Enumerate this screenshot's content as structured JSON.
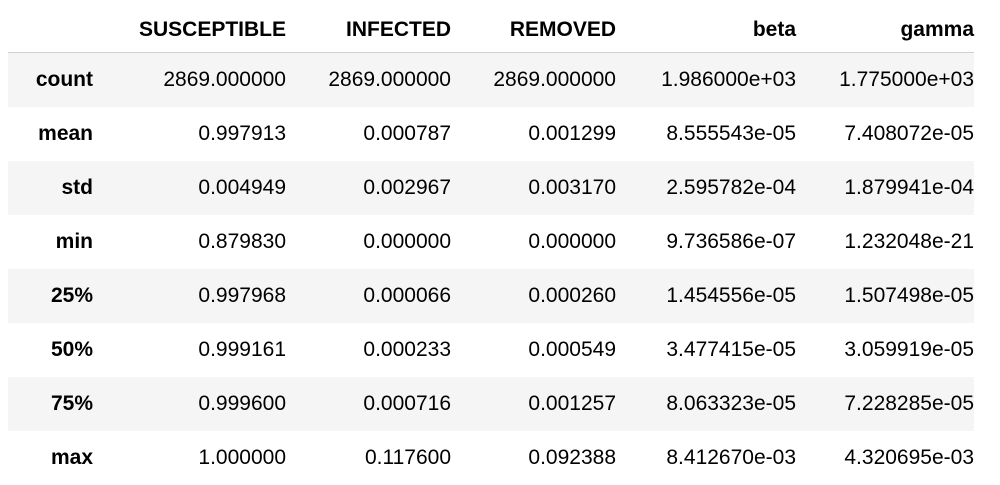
{
  "table": {
    "index_header": "",
    "columns": [
      "SUSCEPTIBLE",
      "INFECTED",
      "REMOVED",
      "beta",
      "gamma"
    ],
    "rows": [
      {
        "label": "count",
        "values": [
          "2869.000000",
          "2869.000000",
          "2869.000000",
          "1.986000e+03",
          "1.775000e+03"
        ]
      },
      {
        "label": "mean",
        "values": [
          "0.997913",
          "0.000787",
          "0.001299",
          "8.555543e-05",
          "7.408072e-05"
        ]
      },
      {
        "label": "std",
        "values": [
          "0.004949",
          "0.002967",
          "0.003170",
          "2.595782e-04",
          "1.879941e-04"
        ]
      },
      {
        "label": "min",
        "values": [
          "0.879830",
          "0.000000",
          "0.000000",
          "9.736586e-07",
          "1.232048e-21"
        ]
      },
      {
        "label": "25%",
        "values": [
          "0.997968",
          "0.000066",
          "0.000260",
          "1.454556e-05",
          "1.507498e-05"
        ]
      },
      {
        "label": "50%",
        "values": [
          "0.999161",
          "0.000233",
          "0.000549",
          "3.477415e-05",
          "3.059919e-05"
        ]
      },
      {
        "label": "75%",
        "values": [
          "0.999600",
          "0.000716",
          "0.001257",
          "8.063323e-05",
          "7.228285e-05"
        ]
      },
      {
        "label": "max",
        "values": [
          "1.000000",
          "0.117600",
          "0.092388",
          "8.412670e-03",
          "4.320695e-03"
        ]
      }
    ]
  },
  "colors": {
    "header_border": "#cfcfcf",
    "row_stripe": "#f5f5f5",
    "background": "#ffffff",
    "text": "#000000"
  }
}
